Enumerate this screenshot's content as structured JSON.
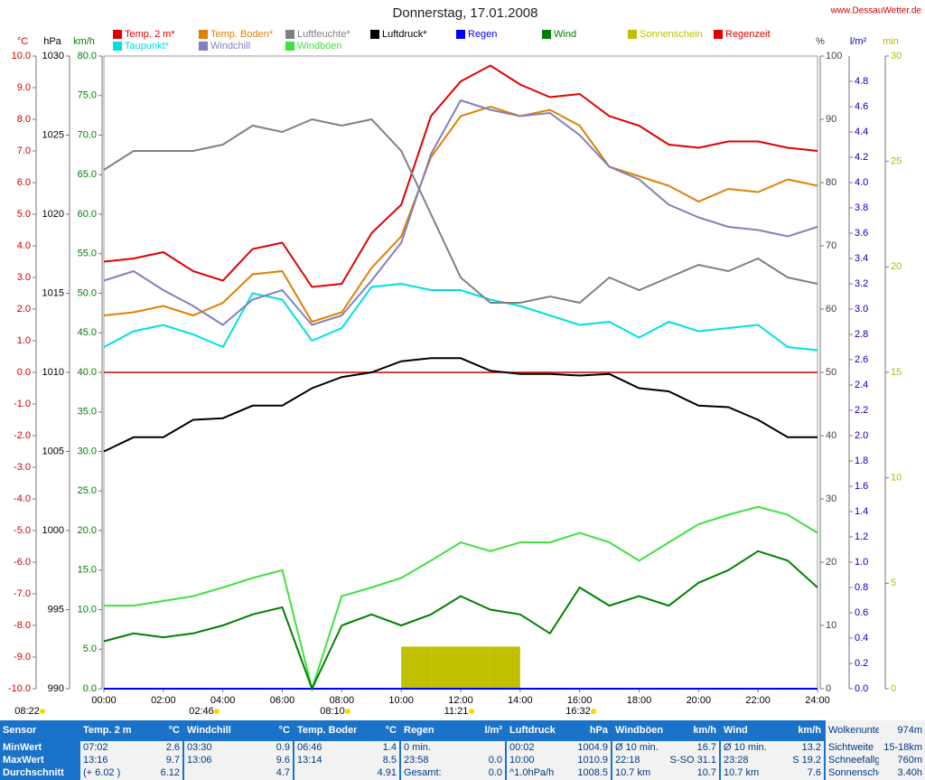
{
  "chart_data": {
    "type": "line",
    "title": "Donnerstag, 17.01.2008",
    "source": "www.DessauWetter.de",
    "x": [
      0,
      1,
      2,
      3,
      4,
      5,
      6,
      7,
      8,
      9,
      10,
      11,
      12,
      13,
      14,
      15,
      16,
      17,
      18,
      19,
      20,
      21,
      22,
      23,
      24
    ],
    "xlim": [
      0,
      24
    ],
    "xticks": [
      {
        "value": 0,
        "label": "00:00"
      },
      {
        "value": 2,
        "label": "02:00"
      },
      {
        "value": 4,
        "label": "04:00"
      },
      {
        "value": 6,
        "label": "06:00"
      },
      {
        "value": 8,
        "label": "08:00"
      },
      {
        "value": 10,
        "label": "10:00"
      },
      {
        "value": 12,
        "label": "12:00"
      },
      {
        "value": 14,
        "label": "14:00"
      },
      {
        "value": 16,
        "label": "16:00"
      },
      {
        "value": 18,
        "label": "18:00"
      },
      {
        "value": 20,
        "label": "20:00"
      },
      {
        "value": 22,
        "label": "22:00"
      },
      {
        "value": 24,
        "label": "24:00"
      }
    ],
    "axes": {
      "temp": {
        "label": "°C",
        "color": "#d00000",
        "lim": [
          -10,
          10
        ],
        "zero_line": true,
        "ticks": [
          {
            "value": -10,
            "label": "-10.0"
          },
          {
            "value": -9,
            "label": "-9.0"
          },
          {
            "value": -8,
            "label": "-8.0"
          },
          {
            "value": -7,
            "label": "-7.0"
          },
          {
            "value": -6,
            "label": "-6.0"
          },
          {
            "value": -5,
            "label": "-5.0"
          },
          {
            "value": -4,
            "label": "-4.0"
          },
          {
            "value": -3,
            "label": "-3.0"
          },
          {
            "value": -2,
            "label": "-2.0"
          },
          {
            "value": -1,
            "label": "-1.0"
          },
          {
            "value": 0,
            "label": "0.0"
          },
          {
            "value": 1,
            "label": "1.0"
          },
          {
            "value": 2,
            "label": "2.0"
          },
          {
            "value": 3,
            "label": "3.0"
          },
          {
            "value": 4,
            "label": "4.0"
          },
          {
            "value": 5,
            "label": "5.0"
          },
          {
            "value": 6,
            "label": "6.0"
          },
          {
            "value": 7,
            "label": "7.0"
          },
          {
            "value": 8,
            "label": "8.0"
          },
          {
            "value": 9,
            "label": "9.0"
          },
          {
            "value": 10,
            "label": "10.0"
          }
        ]
      },
      "hpa": {
        "label": "hPa",
        "color": "#000000",
        "lim": [
          990,
          1030
        ],
        "ticks": [
          990,
          995,
          1000,
          1005,
          1010,
          1015,
          1020,
          1025,
          1030
        ]
      },
      "kmh": {
        "label": "km/h",
        "color": "#008000",
        "lim": [
          0,
          80
        ],
        "ticks": [
          {
            "value": 0,
            "label": "0.0"
          },
          {
            "value": 5,
            "label": "5.0"
          },
          {
            "value": 10,
            "label": "10.0"
          },
          {
            "value": 15,
            "label": "15.0"
          },
          {
            "value": 20,
            "label": "20.0"
          },
          {
            "value": 25,
            "label": "25.0"
          },
          {
            "value": 30,
            "label": "30.0"
          },
          {
            "value": 35,
            "label": "35.0"
          },
          {
            "value": 40,
            "label": "40.0"
          },
          {
            "value": 45,
            "label": "45.0"
          },
          {
            "value": 50,
            "label": "50.0"
          },
          {
            "value": 55,
            "label": "55.0"
          },
          {
            "value": 60,
            "label": "60.0"
          },
          {
            "value": 65,
            "label": "65.0"
          },
          {
            "value": 70,
            "label": "70.0"
          },
          {
            "value": 75,
            "label": "75.0"
          },
          {
            "value": 80,
            "label": "80.0"
          }
        ]
      },
      "pct": {
        "label": "%",
        "color": "#404040",
        "lim": [
          0,
          100
        ],
        "ticks": [
          0,
          10,
          20,
          30,
          40,
          50,
          60,
          70,
          80,
          90,
          100
        ]
      },
      "lm2": {
        "label": "l/m²",
        "color": "#0000c0",
        "lim": [
          0,
          5
        ],
        "ticks": [
          {
            "value": 0,
            "label": "0.0"
          },
          0.2,
          0.4,
          0.6,
          0.8,
          {
            "value": 1,
            "label": "1.0"
          },
          1.2,
          1.4,
          1.6,
          1.8,
          {
            "value": 2,
            "label": "2.0"
          },
          2.2,
          2.4,
          2.6,
          2.8,
          {
            "value": 3,
            "label": "3.0"
          },
          3.2,
          3.4,
          3.6,
          3.8,
          {
            "value": 4,
            "label": "4.0"
          },
          4.2,
          4.4,
          4.6,
          4.8
        ]
      },
      "min": {
        "label": "min",
        "color": "#b8b800",
        "lim": [
          0,
          30
        ],
        "ticks": [
          0,
          5,
          10,
          15,
          20,
          25,
          30
        ]
      }
    },
    "series": [
      {
        "name": "Temp. 2 m*",
        "color": "#e00000",
        "axis": "temp",
        "values": [
          3.5,
          3.6,
          3.8,
          3.2,
          2.9,
          3.9,
          4.1,
          2.7,
          2.8,
          4.4,
          5.3,
          8.1,
          9.2,
          9.7,
          9.1,
          8.7,
          8.8,
          8.1,
          7.8,
          7.2,
          7.1,
          7.3,
          7.3,
          7.1,
          7.0
        ]
      },
      {
        "name": "Taupunkt*",
        "color": "#00e0e0",
        "axis": "temp",
        "values": [
          0.8,
          1.3,
          1.5,
          1.2,
          0.8,
          2.5,
          2.3,
          1.0,
          1.4,
          2.7,
          2.8,
          2.6,
          2.6,
          2.3,
          2.1,
          1.8,
          1.5,
          1.6,
          1.1,
          1.6,
          1.3,
          1.4,
          1.5,
          0.8,
          0.7
        ]
      },
      {
        "name": "Temp. Boden*",
        "color": "#e08000",
        "axis": "temp",
        "values": [
          1.8,
          1.9,
          2.1,
          1.8,
          2.2,
          3.1,
          3.2,
          1.6,
          1.9,
          3.3,
          4.3,
          6.8,
          8.1,
          8.4,
          8.1,
          8.3,
          7.8,
          6.5,
          6.2,
          5.9,
          5.4,
          5.8,
          5.7,
          6.1,
          5.9
        ]
      },
      {
        "name": "Windchill",
        "color": "#8080c0",
        "axis": "temp",
        "values": [
          2.9,
          3.2,
          2.6,
          2.1,
          1.5,
          2.3,
          2.6,
          1.5,
          1.8,
          2.9,
          4.1,
          6.9,
          8.6,
          8.3,
          8.1,
          8.2,
          7.5,
          6.5,
          6.1,
          5.3,
          4.9,
          4.6,
          4.5,
          4.3,
          4.6
        ]
      },
      {
        "name": "Luftfeuchte*",
        "color": "#808080",
        "axis": "pct",
        "values": [
          82,
          85,
          85,
          85,
          86,
          89,
          88,
          90,
          89,
          90,
          85,
          75,
          65,
          61,
          61,
          62,
          61,
          65,
          63,
          65,
          67,
          66,
          68,
          65,
          64
        ]
      },
      {
        "name": "Windböen",
        "color": "#40e040",
        "axis": "kmh",
        "values": [
          10.5,
          10.5,
          11.1,
          11.7,
          12.8,
          14,
          15,
          0,
          11.7,
          12.8,
          14,
          16.2,
          18.5,
          17.4,
          18.5,
          18.5,
          19.7,
          18.5,
          16.2,
          18.5,
          20.8,
          22,
          23,
          22,
          19.7
        ]
      },
      {
        "name": "Luftdruck*",
        "color": "#000000",
        "axis": "hpa",
        "values": [
          1005.0,
          1005.9,
          1005.9,
          1007.0,
          1007.1,
          1007.9,
          1007.9,
          1009.0,
          1009.7,
          1010.0,
          1010.7,
          1010.9,
          1010.9,
          1010.1,
          1009.9,
          1009.9,
          1009.8,
          1009.9,
          1009.0,
          1008.8,
          1007.9,
          1007.8,
          1007.0,
          1005.9,
          1005.9
        ]
      },
      {
        "name": "Regen",
        "color": "#0000ff",
        "axis": "lm2",
        "values": [
          0,
          0,
          0,
          0,
          0,
          0,
          0,
          0,
          0,
          0,
          0,
          0,
          0,
          0,
          0,
          0,
          0,
          0,
          0,
          0,
          0,
          0,
          0,
          0,
          0
        ]
      },
      {
        "name": "Wind",
        "color": "#008000",
        "axis": "kmh",
        "values": [
          6,
          7,
          6.5,
          7,
          8,
          9.4,
          10.3,
          0,
          8,
          9.4,
          8,
          9.4,
          11.7,
          10,
          9.4,
          7,
          12.8,
          10.5,
          11.7,
          10.5,
          13.4,
          15,
          17.4,
          16.2,
          12.8
        ]
      },
      {
        "name": "Sonnenschein",
        "color": "#c0c000",
        "axis": "min",
        "style": "bar",
        "values": [
          0,
          0,
          0,
          0,
          0,
          0,
          0,
          0,
          0,
          0,
          2.0,
          2.0,
          2.0,
          2.0,
          0,
          0,
          0,
          0,
          0,
          0,
          0,
          0,
          0,
          0,
          0
        ]
      },
      {
        "name": "Regenzeit",
        "color": "#e00000",
        "axis": "min",
        "style": "bar",
        "values": [
          0,
          0,
          0,
          0,
          0,
          0,
          0,
          0,
          0,
          0,
          0,
          0,
          0,
          0,
          0,
          0,
          0,
          0,
          0,
          0,
          0,
          0,
          0,
          0,
          0
        ]
      }
    ],
    "annotations": [
      "08:22",
      "02:46",
      "08:10",
      "11:21",
      "16:32"
    ]
  },
  "table": {
    "columns": [
      {
        "name": "Sensor",
        "rows": [
          "MinWert",
          "MaxWert",
          "Durchschnitt"
        ]
      },
      {
        "name": "Temp. 2 m",
        "unit": "°C",
        "rows": [
          [
            "07:02",
            "2.6"
          ],
          [
            "13:16",
            "9.7"
          ],
          [
            "(+ 6.02 )",
            "6.12"
          ]
        ]
      },
      {
        "name": "Windchill",
        "unit": "°C",
        "rows": [
          [
            "03:30",
            "0.9"
          ],
          [
            "13:06",
            "9.6"
          ],
          [
            null,
            "4.7"
          ]
        ]
      },
      {
        "name": "Temp. Boden",
        "unit": "°C",
        "rows": [
          [
            "06:46",
            "1.4"
          ],
          [
            "13:14",
            "8.5"
          ],
          [
            null,
            "4.91"
          ]
        ]
      },
      {
        "name": "Regen",
        "unit": "l/m²",
        "rows": [
          [
            "0 min.",
            null
          ],
          [
            "23:58",
            "0.0"
          ],
          [
            "Gesamt:",
            "0.0"
          ]
        ]
      },
      {
        "name": "Luftdruck",
        "unit": "hPa",
        "rows": [
          [
            "00:02",
            "1004.9"
          ],
          [
            "10:00",
            "1010.9"
          ],
          [
            "^1.0hPa/h",
            "1008.5"
          ]
        ]
      },
      {
        "name": "Windböen",
        "unit": "km/h",
        "rows": [
          [
            "Ø 10 min.",
            "16.7"
          ],
          [
            "22:18",
            "S-SO 31.1"
          ],
          [
            "10.7 km",
            "10.7"
          ]
        ]
      },
      {
        "name": "Wind",
        "unit": "km/h",
        "rows": [
          [
            "Ø 10 min.",
            "13.2"
          ],
          [
            "23:28",
            "S 19.2"
          ],
          [
            "10.7 km",
            "7.6"
          ]
        ]
      }
    ],
    "extra": [
      [
        "Wolkenuntergr",
        "974m"
      ],
      [
        "Sichtweite",
        "15-18km"
      ],
      [
        "Schneefallgr",
        "760m"
      ],
      [
        "Sonnenschein",
        "3.40h"
      ]
    ]
  }
}
